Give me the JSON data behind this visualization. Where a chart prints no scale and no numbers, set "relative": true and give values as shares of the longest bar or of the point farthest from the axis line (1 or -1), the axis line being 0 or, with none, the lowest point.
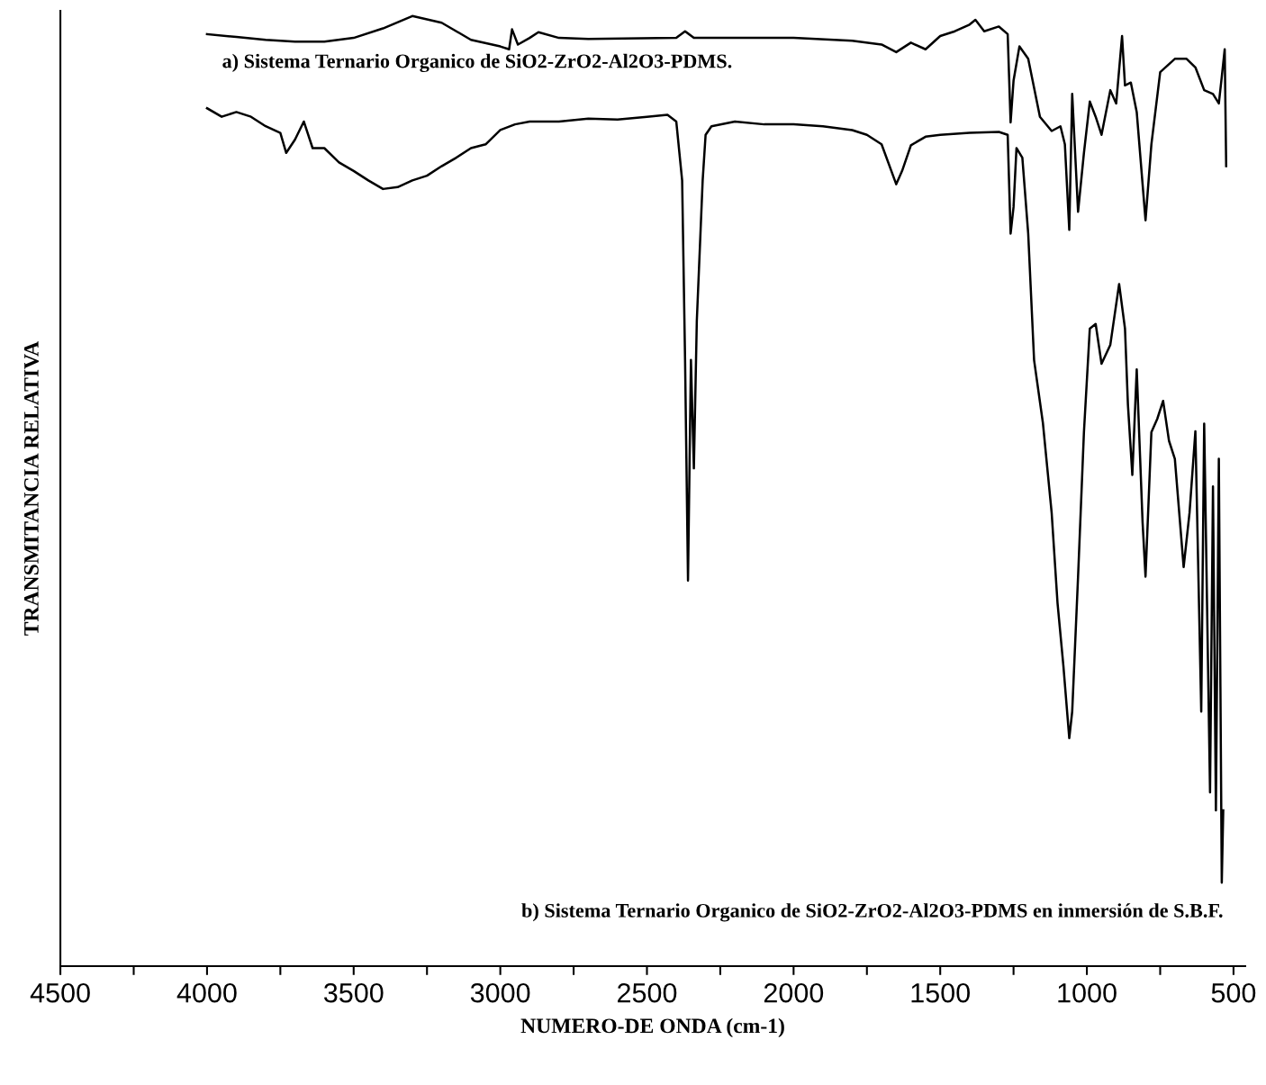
{
  "chart_data": {
    "type": "line",
    "relative": true,
    "xlabel": "NUMERO-DE ONDA (cm-1)",
    "ylabel": "TRANSMITANCIA RELATIVA",
    "xlim": [
      4500,
      460
    ],
    "xticks": [
      4500,
      {
        "value": 4250,
        "label": null
      },
      4000,
      {
        "value": 3750,
        "label": null
      },
      3500,
      {
        "value": 3250,
        "label": null
      },
      3000,
      {
        "value": 2750,
        "label": null
      },
      2500,
      {
        "value": 2250,
        "label": null
      },
      2000,
      {
        "value": 1750,
        "label": null
      },
      1500,
      {
        "value": 1250,
        "label": null
      },
      1000,
      {
        "value": 750,
        "label": null
      },
      500
    ],
    "grid": false,
    "legend": false,
    "marker": "none",
    "line_style": "solid",
    "series": [
      {
        "name": "a) Sistema Ternario Organico de SiO2-ZrO2-Al2O3-PDMS.",
        "color": "#000000",
        "x": [
          4000,
          3900,
          3800,
          3700,
          3600,
          3500,
          3400,
          3300,
          3200,
          3100,
          3000,
          2970,
          2960,
          2940,
          2900,
          2870,
          2800,
          2700,
          2400,
          2370,
          2340,
          2000,
          1800,
          1700,
          1650,
          1600,
          1550,
          1500,
          1450,
          1400,
          1380,
          1350,
          1300,
          1270,
          1260,
          1250,
          1230,
          1200,
          1160,
          1120,
          1090,
          1075,
          1060,
          1050,
          1030,
          1010,
          990,
          970,
          950,
          920,
          900,
          880,
          870,
          850,
          830,
          800,
          780,
          750,
          700,
          660,
          630,
          600,
          570,
          550,
          540,
          530,
          525
        ],
        "values": [
          0.981,
          0.978,
          0.975,
          0.973,
          0.973,
          0.977,
          0.987,
          1.0,
          0.993,
          0.975,
          0.968,
          0.965,
          0.986,
          0.97,
          0.977,
          0.983,
          0.977,
          0.976,
          0.977,
          0.984,
          0.977,
          0.977,
          0.974,
          0.97,
          0.962,
          0.972,
          0.965,
          0.979,
          0.984,
          0.991,
          0.996,
          0.984,
          0.989,
          0.981,
          0.888,
          0.932,
          0.968,
          0.955,
          0.894,
          0.879,
          0.884,
          0.865,
          0.775,
          0.918,
          0.794,
          0.856,
          0.91,
          0.894,
          0.875,
          0.922,
          0.908,
          0.979,
          0.927,
          0.93,
          0.899,
          0.785,
          0.865,
          0.941,
          0.955,
          0.955,
          0.946,
          0.922,
          0.918,
          0.908,
          0.936,
          0.965,
          0.842
        ]
      },
      {
        "name": "b) Sistema Ternario Organico de SiO2-ZrO2-Al2O3-PDMS en inmersión de S.B.F.",
        "color": "#000000",
        "x": [
          4000,
          3950,
          3900,
          3850,
          3800,
          3750,
          3730,
          3700,
          3670,
          3640,
          3600,
          3550,
          3500,
          3450,
          3400,
          3350,
          3300,
          3250,
          3200,
          3150,
          3100,
          3050,
          3000,
          2950,
          2900,
          2800,
          2700,
          2600,
          2500,
          2430,
          2400,
          2380,
          2370,
          2360,
          2350,
          2340,
          2330,
          2310,
          2300,
          2280,
          2200,
          2100,
          2000,
          1900,
          1800,
          1750,
          1700,
          1650,
          1630,
          1600,
          1550,
          1500,
          1400,
          1300,
          1270,
          1260,
          1250,
          1240,
          1220,
          1200,
          1180,
          1150,
          1120,
          1100,
          1080,
          1060,
          1050,
          1030,
          1010,
          990,
          970,
          950,
          920,
          890,
          870,
          860,
          845,
          830,
          810,
          800,
          780,
          760,
          740,
          720,
          700,
          670,
          650,
          630,
          610,
          600,
          580,
          570,
          560,
          550,
          540,
          535
        ],
        "values": [
          0.903,
          0.894,
          0.899,
          0.894,
          0.884,
          0.877,
          0.856,
          0.87,
          0.889,
          0.861,
          0.861,
          0.846,
          0.837,
          0.827,
          0.818,
          0.82,
          0.827,
          0.832,
          0.842,
          0.851,
          0.861,
          0.865,
          0.88,
          0.886,
          0.889,
          0.889,
          0.892,
          0.891,
          0.894,
          0.896,
          0.889,
          0.827,
          0.638,
          0.406,
          0.638,
          0.524,
          0.679,
          0.827,
          0.875,
          0.884,
          0.889,
          0.886,
          0.886,
          0.884,
          0.88,
          0.875,
          0.865,
          0.823,
          0.837,
          0.864,
          0.873,
          0.875,
          0.877,
          0.878,
          0.875,
          0.771,
          0.799,
          0.861,
          0.851,
          0.771,
          0.638,
          0.572,
          0.477,
          0.382,
          0.316,
          0.24,
          0.268,
          0.41,
          0.562,
          0.671,
          0.676,
          0.634,
          0.654,
          0.718,
          0.671,
          0.591,
          0.517,
          0.628,
          0.467,
          0.41,
          0.562,
          0.576,
          0.595,
          0.553,
          0.534,
          0.42,
          0.477,
          0.563,
          0.268,
          0.571,
          0.183,
          0.505,
          0.164,
          0.534,
          0.088,
          0.164
        ]
      }
    ]
  }
}
